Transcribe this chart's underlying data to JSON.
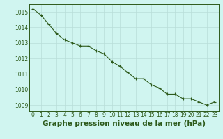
{
  "x": [
    0,
    1,
    2,
    3,
    4,
    5,
    6,
    7,
    8,
    9,
    10,
    11,
    12,
    13,
    14,
    15,
    16,
    17,
    18,
    19,
    20,
    21,
    22,
    23
  ],
  "y": [
    1015.2,
    1014.8,
    1014.2,
    1013.6,
    1013.2,
    1013.0,
    1012.8,
    1012.8,
    1012.5,
    1012.3,
    1011.8,
    1011.5,
    1011.1,
    1010.7,
    1010.7,
    1010.3,
    1010.1,
    1009.7,
    1009.7,
    1009.4,
    1009.4,
    1009.2,
    1009.0,
    1009.2
  ],
  "line_color": "#2d5a1b",
  "marker": "+",
  "marker_size": 3,
  "line_width": 0.8,
  "background_color": "#d0f5f0",
  "grid_color": "#b8ddd8",
  "xlabel": "Graphe pression niveau de la mer (hPa)",
  "ylabel": "",
  "ylim": [
    1008.6,
    1015.5
  ],
  "xlim": [
    -0.5,
    23.5
  ],
  "yticks": [
    1009,
    1010,
    1011,
    1012,
    1013,
    1014,
    1015
  ],
  "xticks": [
    0,
    1,
    2,
    3,
    4,
    5,
    6,
    7,
    8,
    9,
    10,
    11,
    12,
    13,
    14,
    15,
    16,
    17,
    18,
    19,
    20,
    21,
    22,
    23
  ],
  "tick_fontsize": 5.5,
  "xlabel_fontsize": 7.5,
  "line_dark_color": "#2d5a1b",
  "tick_color": "#2d5a1b",
  "border_color": "#2d5a1b",
  "grid_minor_color": "#c8e8e0"
}
